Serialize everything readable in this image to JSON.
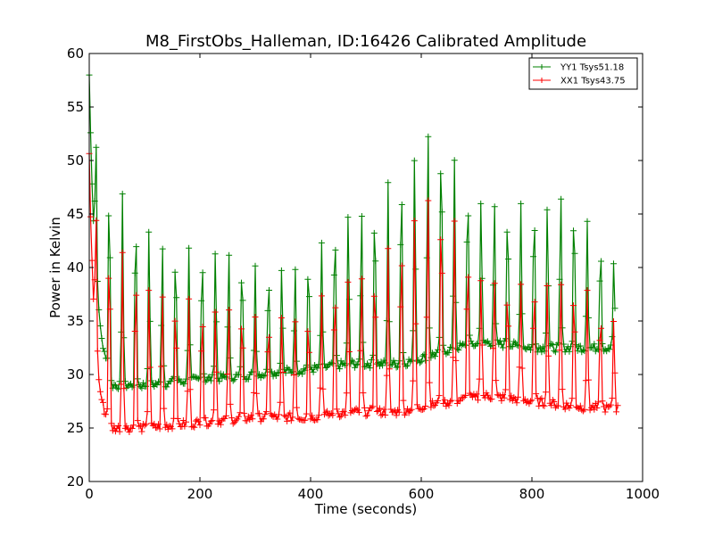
{
  "chart_data": {
    "type": "line",
    "title": "M8_FirstObs_Halleman, ID:16426 Calibrated Amplitude",
    "xlabel": "Time (seconds)",
    "ylabel": "Power in Kelvin",
    "xlim": [
      0,
      1000
    ],
    "ylim": [
      20,
      60
    ],
    "xticks": [
      "0",
      "200",
      "400",
      "600",
      "800",
      "1000"
    ],
    "yticks": [
      "20",
      "25",
      "30",
      "35",
      "40",
      "45",
      "50",
      "55",
      "60"
    ],
    "grid": false,
    "legend_position": "top-right",
    "sample_interval_s": 2.5,
    "series": [
      {
        "name": "YY1 Tsys51.18",
        "color": "#008000",
        "marker": "+",
        "t_max": 950,
        "period": 24,
        "start": 58,
        "start_decay": 12,
        "peaks": [
          [
            45,
            48.5
          ],
          [
            85,
            45
          ],
          [
            120,
            43
          ],
          [
            155,
            42
          ],
          [
            190,
            42
          ],
          [
            235,
            42
          ],
          [
            270,
            41
          ],
          [
            305,
            40
          ],
          [
            340,
            40
          ],
          [
            375,
            40
          ],
          [
            400,
            41
          ],
          [
            430,
            43
          ],
          [
            460,
            45
          ],
          [
            500,
            46
          ],
          [
            530,
            47
          ],
          [
            560,
            49
          ],
          [
            585,
            51
          ],
          [
            605,
            53.5
          ],
          [
            625,
            53.5
          ],
          [
            645,
            52
          ],
          [
            670,
            49
          ],
          [
            700,
            47
          ],
          [
            730,
            46
          ],
          [
            760,
            46
          ],
          [
            790,
            46
          ],
          [
            820,
            46
          ],
          [
            850,
            47
          ],
          [
            880,
            46
          ],
          [
            910,
            44
          ],
          [
            935,
            42
          ],
          [
            950,
            40.5
          ]
        ],
        "troughs": [
          [
            25,
            29
          ],
          [
            100,
            29
          ],
          [
            200,
            29.5
          ],
          [
            300,
            30
          ],
          [
            400,
            30.5
          ],
          [
            470,
            31
          ],
          [
            560,
            31
          ],
          [
            600,
            31.5
          ],
          [
            660,
            32.5
          ],
          [
            720,
            33
          ],
          [
            800,
            32.5
          ],
          [
            880,
            32.5
          ],
          [
            940,
            32.5
          ]
        ]
      },
      {
        "name": "XX1 Tsys43.75",
        "color": "#ff0000",
        "marker": "+",
        "t_max": 955,
        "period": 24,
        "start": 50.5,
        "start_decay": 10,
        "peaks": [
          [
            45,
            42.5
          ],
          [
            85,
            40
          ],
          [
            120,
            38
          ],
          [
            155,
            37.5
          ],
          [
            190,
            37
          ],
          [
            235,
            36.5
          ],
          [
            270,
            36
          ],
          [
            305,
            35.5
          ],
          [
            340,
            35.5
          ],
          [
            375,
            35.5
          ],
          [
            400,
            36
          ],
          [
            430,
            38
          ],
          [
            460,
            39
          ],
          [
            500,
            39.5
          ],
          [
            530,
            41
          ],
          [
            560,
            42.5
          ],
          [
            585,
            45
          ],
          [
            605,
            47
          ],
          [
            625,
            47.5
          ],
          [
            645,
            45.5
          ],
          [
            670,
            43
          ],
          [
            700,
            40
          ],
          [
            730,
            39
          ],
          [
            760,
            38.5
          ],
          [
            790,
            38.5
          ],
          [
            820,
            38.5
          ],
          [
            850,
            39
          ],
          [
            880,
            38.5
          ],
          [
            910,
            37
          ],
          [
            935,
            36
          ],
          [
            955,
            35
          ]
        ],
        "troughs": [
          [
            25,
            25
          ],
          [
            100,
            25
          ],
          [
            200,
            25.5
          ],
          [
            300,
            26
          ],
          [
            400,
            26
          ],
          [
            470,
            26.5
          ],
          [
            560,
            26.5
          ],
          [
            600,
            27
          ],
          [
            660,
            27.5
          ],
          [
            720,
            28
          ],
          [
            800,
            27.5
          ],
          [
            880,
            27
          ],
          [
            950,
            26.8
          ]
        ]
      }
    ]
  }
}
